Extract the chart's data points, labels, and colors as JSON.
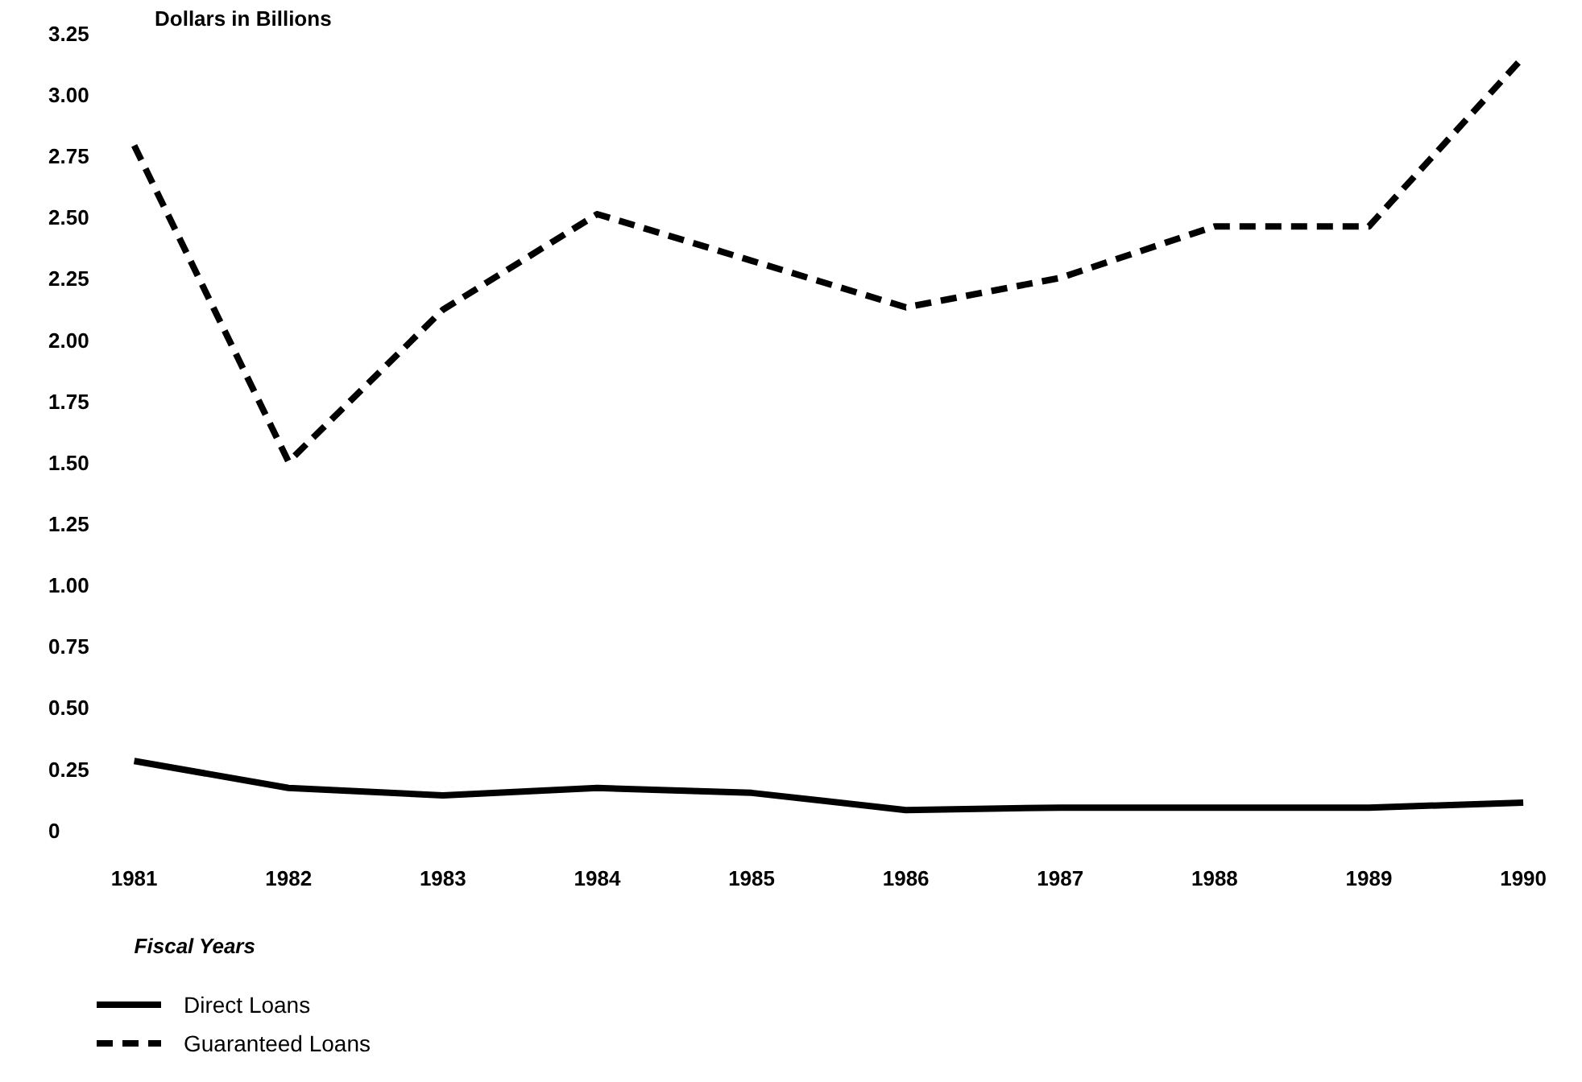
{
  "chart_data": {
    "type": "line",
    "ylabel": "Dollars in Billions",
    "xlabel": "Fiscal Years",
    "categories": [
      "1981",
      "1982",
      "1983",
      "1984",
      "1985",
      "1986",
      "1987",
      "1988",
      "1989",
      "1990"
    ],
    "ylim": [
      0,
      3.25
    ],
    "yticks": [
      {
        "value": 0,
        "label": "0"
      },
      {
        "value": 0.25,
        "label": "0.25"
      },
      {
        "value": 0.5,
        "label": "0.50"
      },
      {
        "value": 0.75,
        "label": "0.75"
      },
      {
        "value": 1,
        "label": "1.00"
      },
      {
        "value": 1.25,
        "label": "1.25"
      },
      {
        "value": 1.5,
        "label": "1.50"
      },
      {
        "value": 1.75,
        "label": "1.75"
      },
      {
        "value": 2,
        "label": "2.00"
      },
      {
        "value": 2.25,
        "label": "2.25"
      },
      {
        "value": 2.5,
        "label": "2.50"
      },
      {
        "value": 2.75,
        "label": "2.75"
      },
      {
        "value": 3,
        "label": "3.00"
      },
      {
        "value": 3.25,
        "label": "3.25"
      }
    ],
    "grid": false,
    "legend": "bottom left",
    "marker": "none",
    "series": [
      {
        "name": "Direct Loans",
        "color": "#000000",
        "line_style": "solid",
        "values": [
          0.29,
          0.18,
          0.15,
          0.18,
          0.16,
          0.09,
          0.1,
          0.1,
          0.1,
          0.12
        ]
      },
      {
        "name": "Guaranteed Loans",
        "color": "#000000",
        "line_style": "dashed",
        "values": [
          2.8,
          1.51,
          2.13,
          2.52,
          2.33,
          2.14,
          2.26,
          2.47,
          2.47,
          3.16
        ]
      }
    ]
  }
}
